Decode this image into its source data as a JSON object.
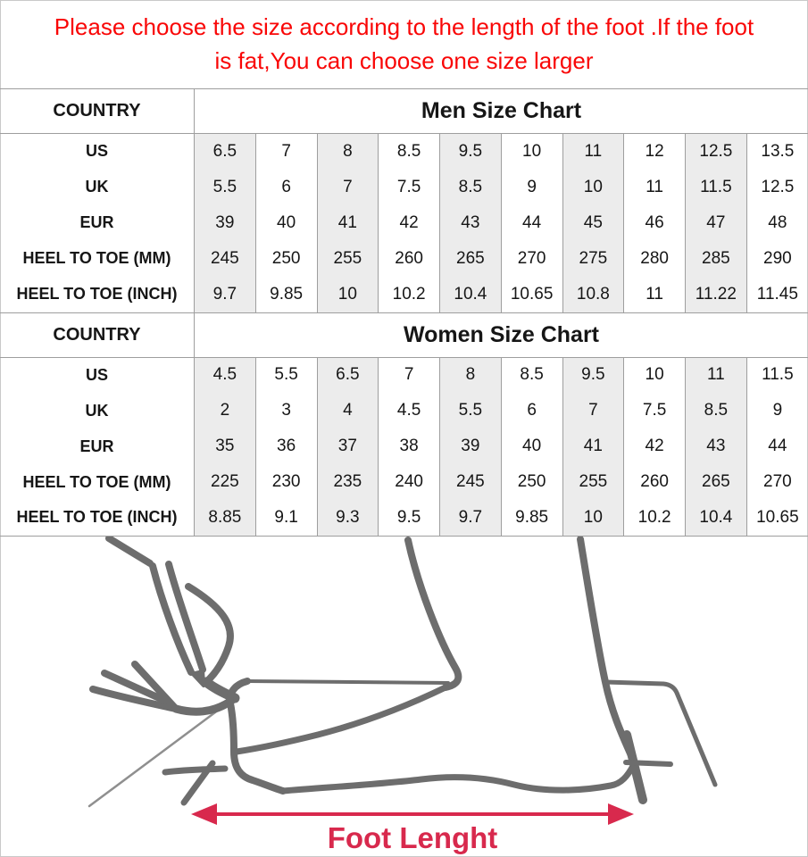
{
  "note": {
    "line1": "Please choose the size according to the length of the foot .If the foot",
    "line2": "is fat,You can choose one size larger"
  },
  "tables": [
    {
      "corner_label": "COUNTRY",
      "title": "Men Size Chart",
      "rows": [
        {
          "label": "US",
          "values": [
            "6.5",
            "7",
            "8",
            "8.5",
            "9.5",
            "10",
            "11",
            "12",
            "12.5",
            "13.5"
          ]
        },
        {
          "label": "UK",
          "values": [
            "5.5",
            "6",
            "7",
            "7.5",
            "8.5",
            "9",
            "10",
            "11",
            "11.5",
            "12.5"
          ]
        },
        {
          "label": "EUR",
          "values": [
            "39",
            "40",
            "41",
            "42",
            "43",
            "44",
            "45",
            "46",
            "47",
            "48"
          ]
        },
        {
          "label": "HEEL TO TOE (MM)",
          "values": [
            "245",
            "250",
            "255",
            "260",
            "265",
            "270",
            "275",
            "280",
            "285",
            "290"
          ]
        },
        {
          "label": "HEEL TO TOE (INCH)",
          "values": [
            "9.7",
            "9.85",
            "10",
            "10.2",
            "10.4",
            "10.65",
            "10.8",
            "11",
            "11.22",
            "11.45"
          ]
        }
      ]
    },
    {
      "corner_label": "COUNTRY",
      "title": "Women Size Chart",
      "rows": [
        {
          "label": "US",
          "values": [
            "4.5",
            "5.5",
            "6.5",
            "7",
            "8",
            "8.5",
            "9.5",
            "10",
            "11",
            "11.5"
          ]
        },
        {
          "label": "UK",
          "values": [
            "2",
            "3",
            "4",
            "4.5",
            "5.5",
            "6",
            "7",
            "7.5",
            "8.5",
            "9"
          ]
        },
        {
          "label": "EUR",
          "values": [
            "35",
            "36",
            "37",
            "38",
            "39",
            "40",
            "41",
            "42",
            "43",
            "44"
          ]
        },
        {
          "label": "HEEL TO TOE (MM)",
          "values": [
            "225",
            "230",
            "235",
            "240",
            "245",
            "250",
            "255",
            "260",
            "265",
            "270"
          ]
        },
        {
          "label": "HEEL TO TOE (INCH)",
          "values": [
            "8.85",
            "9.1",
            "9.3",
            "9.5",
            "9.7",
            "9.85",
            "10",
            "10.2",
            "10.4",
            "10.65"
          ]
        }
      ]
    }
  ],
  "diagram": {
    "arrow_label": "Foot Lenght"
  },
  "colors": {
    "note_red": "#f90606",
    "arrow_crimson": "#d8294d",
    "column_shade": "#ececec",
    "grid_line": "#9e9e9e",
    "drawing_gray": "#6d6d6d"
  }
}
